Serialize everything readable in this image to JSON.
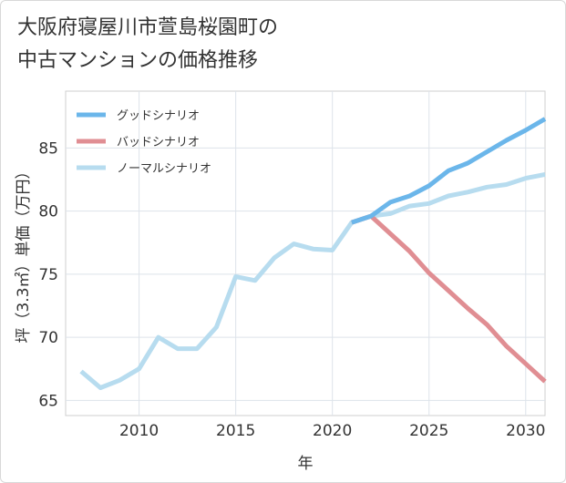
{
  "chart_data": {
    "type": "line",
    "title_lines": [
      "大阪府寝屋川市萱島桜園町の",
      "中古マンションの価格推移"
    ],
    "xlabel": "年",
    "ylabel": "坪（3.3㎡）単価（万円）",
    "xlim": [
      2006.2,
      2031
    ],
    "ylim": [
      63.8,
      89.5
    ],
    "x_ticks": [
      2010,
      2015,
      2020,
      2025,
      2030
    ],
    "y_ticks": [
      65,
      70,
      75,
      80,
      85
    ],
    "grid": true,
    "legend_position": "top-left",
    "series": [
      {
        "name": "グッドシナリオ",
        "color": "#6bb6ea",
        "x": [
          2021,
          2022,
          2023,
          2024,
          2025,
          2026,
          2027,
          2028,
          2029,
          2030,
          2031
        ],
        "y": [
          79.1,
          79.6,
          80.7,
          81.2,
          82.0,
          83.2,
          83.8,
          84.7,
          85.6,
          86.4,
          87.3
        ]
      },
      {
        "name": "バッドシナリオ",
        "color": "#e08e93",
        "x": [
          2021,
          2022,
          2023,
          2024,
          2025,
          2026,
          2027,
          2028,
          2029,
          2030,
          2031
        ],
        "y": [
          79.1,
          79.6,
          78.2,
          76.8,
          75.1,
          73.7,
          72.3,
          71.0,
          69.3,
          67.9,
          66.5
        ]
      },
      {
        "name": "ノーマルシナリオ",
        "color": "#b7dcef",
        "x": [
          2007,
          2008,
          2009,
          2010,
          2011,
          2012,
          2013,
          2014,
          2015,
          2016,
          2017,
          2018,
          2019,
          2020,
          2021,
          2022,
          2023,
          2024,
          2025,
          2026,
          2027,
          2028,
          2029,
          2030,
          2031
        ],
        "y": [
          67.3,
          66.0,
          66.6,
          67.5,
          70.0,
          69.1,
          69.1,
          70.8,
          74.8,
          74.5,
          76.3,
          77.4,
          77.0,
          76.9,
          79.1,
          79.6,
          79.8,
          80.4,
          80.6,
          81.2,
          81.5,
          81.9,
          82.1,
          82.6,
          82.9
        ]
      }
    ]
  }
}
